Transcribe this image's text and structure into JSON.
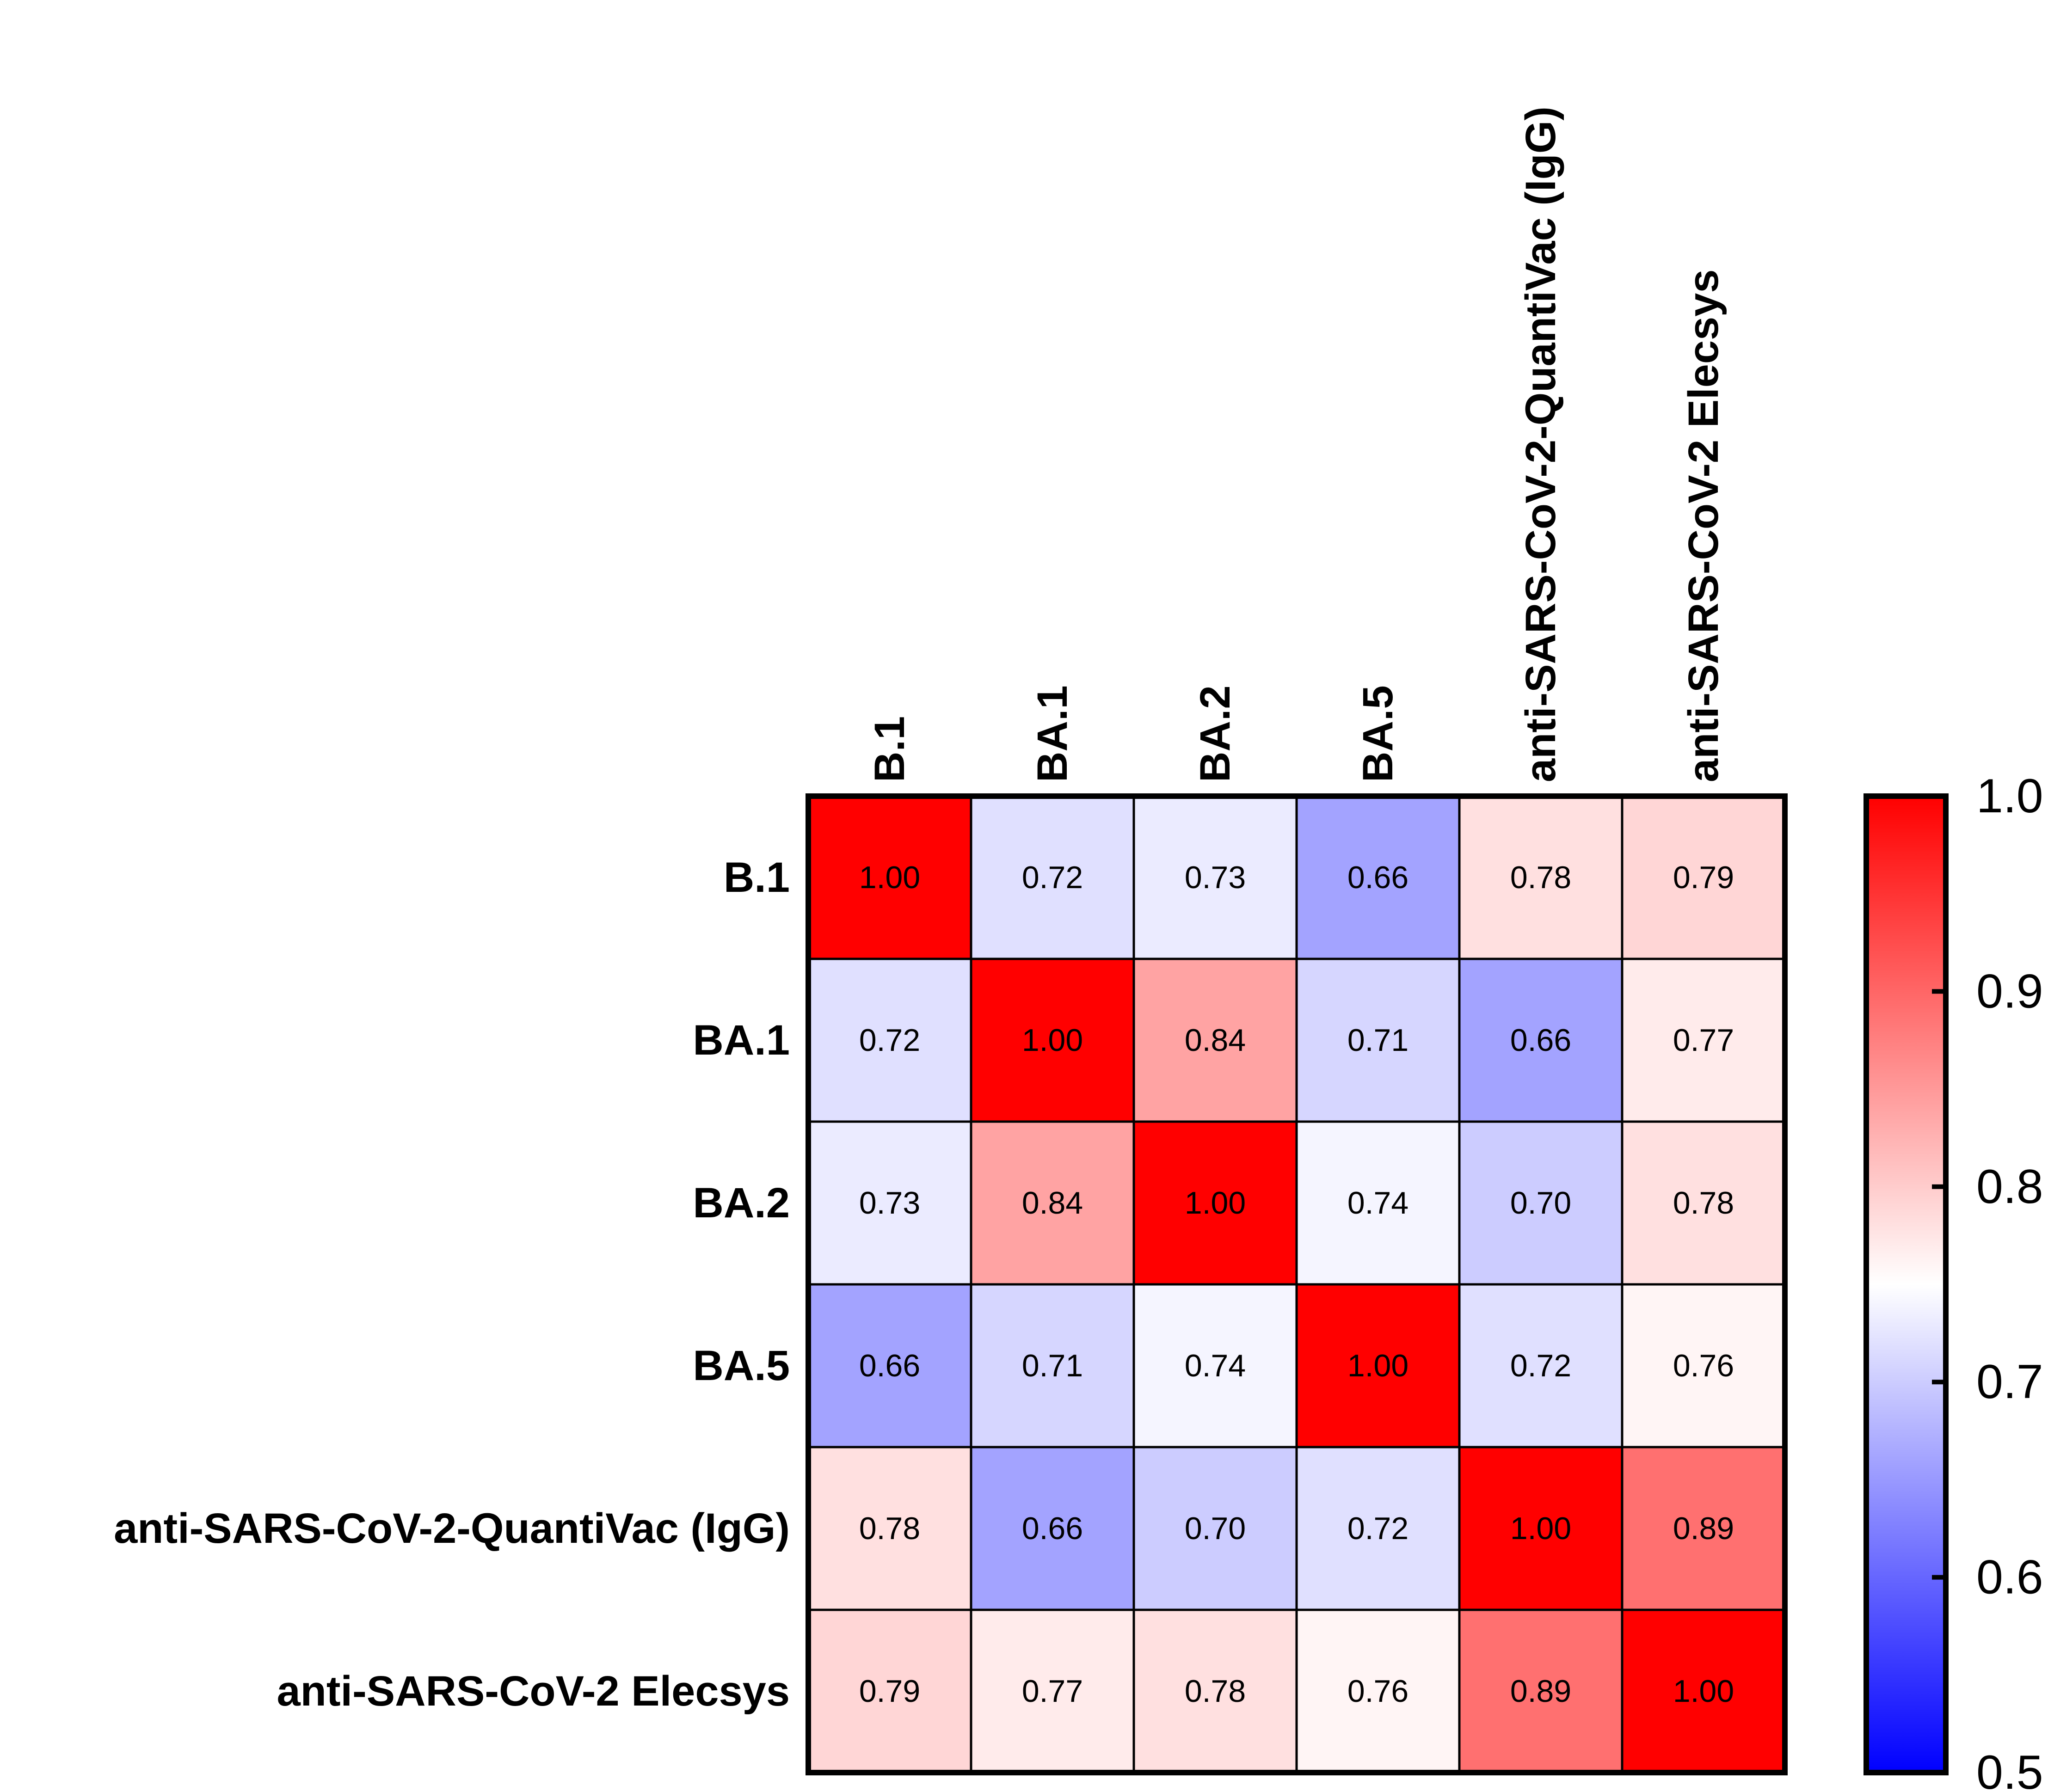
{
  "chart_data": {
    "type": "heatmap",
    "title": "",
    "rows": [
      "B.1",
      "BA.1",
      "BA.2",
      "BA.5",
      "anti-SARS-CoV-2-QuantiVac (IgG)",
      "anti-SARS-CoV-2 Elecsys"
    ],
    "columns": [
      "B.1",
      "BA.1",
      "BA.2",
      "BA.5",
      "anti-SARS-CoV-2-QuantiVac (IgG)",
      "anti-SARS-CoV-2 Elecsys"
    ],
    "values": [
      [
        1.0,
        0.72,
        0.73,
        0.66,
        0.78,
        0.79
      ],
      [
        0.72,
        1.0,
        0.84,
        0.71,
        0.66,
        0.77
      ],
      [
        0.73,
        0.84,
        1.0,
        0.74,
        0.7,
        0.78
      ],
      [
        0.66,
        0.71,
        0.74,
        1.0,
        0.72,
        0.76
      ],
      [
        0.78,
        0.66,
        0.7,
        0.72,
        1.0,
        0.89
      ],
      [
        0.79,
        0.77,
        0.78,
        0.76,
        0.89,
        1.0
      ]
    ],
    "value_labels": [
      [
        "1.00",
        "0.72",
        "0.73",
        "0.66",
        "0.78",
        "0.79"
      ],
      [
        "0.72",
        "1.00",
        "0.84",
        "0.71",
        "0.66",
        "0.77"
      ],
      [
        "0.73",
        "0.84",
        "1.00",
        "0.74",
        "0.70",
        "0.78"
      ],
      [
        "0.66",
        "0.71",
        "0.74",
        "1.00",
        "0.72",
        "0.76"
      ],
      [
        "0.78",
        "0.66",
        "0.70",
        "0.72",
        "1.00",
        "0.89"
      ],
      [
        "0.79",
        "0.77",
        "0.78",
        "0.76",
        "0.89",
        "1.00"
      ]
    ],
    "colorbar": {
      "min": 0.5,
      "max": 1.0,
      "ticks": [
        1.0,
        0.9,
        0.8,
        0.7,
        0.6,
        0.5
      ],
      "tick_labels": [
        "1.0",
        "0.9",
        "0.8",
        "0.7",
        "0.6",
        "0.5"
      ],
      "colors": {
        "low": "#0000ff",
        "mid": "#ffffff",
        "high": "#ff0000"
      },
      "mid_value": 0.75
    }
  }
}
